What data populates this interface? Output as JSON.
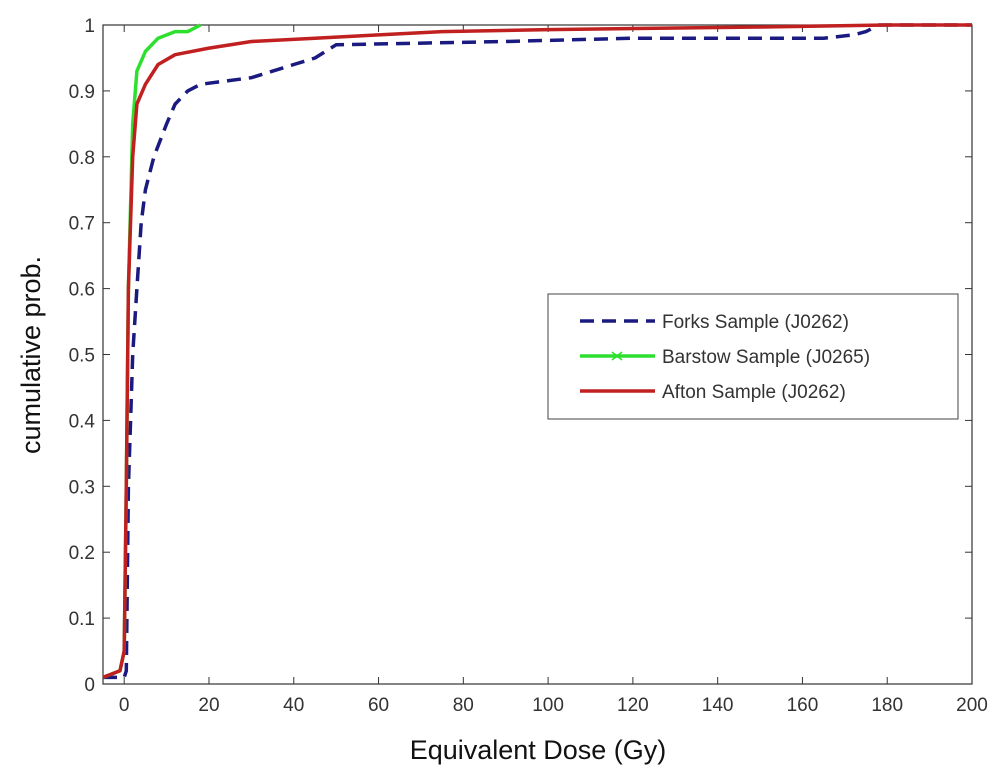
{
  "chart_data": {
    "type": "line",
    "title": "",
    "xlabel": "Equivalent Dose (Gy)",
    "ylabel": "cumulative prob.",
    "xlim": [
      -5,
      200
    ],
    "ylim": [
      0,
      1
    ],
    "x_ticks": [
      0,
      20,
      40,
      60,
      80,
      100,
      120,
      140,
      160,
      180,
      200
    ],
    "y_ticks": [
      0,
      0.1,
      0.2,
      0.3,
      0.4,
      0.5,
      0.6,
      0.7,
      0.8,
      0.9,
      1
    ],
    "x_tick_labels": [
      "0",
      "20",
      "40",
      "60",
      "80",
      "100",
      "120",
      "140",
      "160",
      "180",
      "200"
    ],
    "y_tick_labels": [
      "0",
      "0.1",
      "0.2",
      "0.3",
      "0.4",
      "0.5",
      "0.6",
      "0.7",
      "0.8",
      "0.9",
      "1"
    ],
    "grid": false,
    "legend_position": "center-right",
    "series": [
      {
        "name": "Forks Sample (J0262)",
        "color": "#1a1a80",
        "style": "dashed",
        "points": [
          [
            -5,
            0.01
          ],
          [
            0,
            0.01
          ],
          [
            0.5,
            0.02
          ],
          [
            1,
            0.3
          ],
          [
            1.5,
            0.4
          ],
          [
            2,
            0.5
          ],
          [
            3,
            0.6
          ],
          [
            4,
            0.7
          ],
          [
            5,
            0.75
          ],
          [
            7,
            0.8
          ],
          [
            10,
            0.85
          ],
          [
            12,
            0.88
          ],
          [
            15,
            0.9
          ],
          [
            18,
            0.91
          ],
          [
            30,
            0.92
          ],
          [
            40,
            0.94
          ],
          [
            45,
            0.95
          ],
          [
            50,
            0.97
          ],
          [
            90,
            0.975
          ],
          [
            120,
            0.98
          ],
          [
            165,
            0.98
          ],
          [
            172,
            0.985
          ],
          [
            175,
            0.99
          ],
          [
            178,
            1.0
          ],
          [
            200,
            1.0
          ]
        ]
      },
      {
        "name": "Barstow Sample (J0265)",
        "color": "#2ee02e",
        "style": "solid",
        "points": [
          [
            -5,
            0.01
          ],
          [
            -1,
            0.02
          ],
          [
            0,
            0.05
          ],
          [
            0.5,
            0.3
          ],
          [
            1,
            0.6
          ],
          [
            2,
            0.85
          ],
          [
            3,
            0.93
          ],
          [
            5,
            0.96
          ],
          [
            8,
            0.98
          ],
          [
            12,
            0.99
          ],
          [
            15,
            0.99
          ],
          [
            18,
            1.0
          ]
        ]
      },
      {
        "name": "Afton Sample (J0262)",
        "color": "#c02020",
        "style": "solid",
        "points": [
          [
            -5,
            0.01
          ],
          [
            -1,
            0.02
          ],
          [
            0,
            0.05
          ],
          [
            0.5,
            0.3
          ],
          [
            1,
            0.6
          ],
          [
            2,
            0.8
          ],
          [
            3,
            0.88
          ],
          [
            5,
            0.91
          ],
          [
            8,
            0.94
          ],
          [
            12,
            0.955
          ],
          [
            20,
            0.965
          ],
          [
            30,
            0.975
          ],
          [
            45,
            0.98
          ],
          [
            60,
            0.985
          ],
          [
            75,
            0.99
          ],
          [
            100,
            0.993
          ],
          [
            150,
            0.997
          ],
          [
            180,
            1.0
          ],
          [
            200,
            1.0
          ]
        ]
      }
    ]
  }
}
